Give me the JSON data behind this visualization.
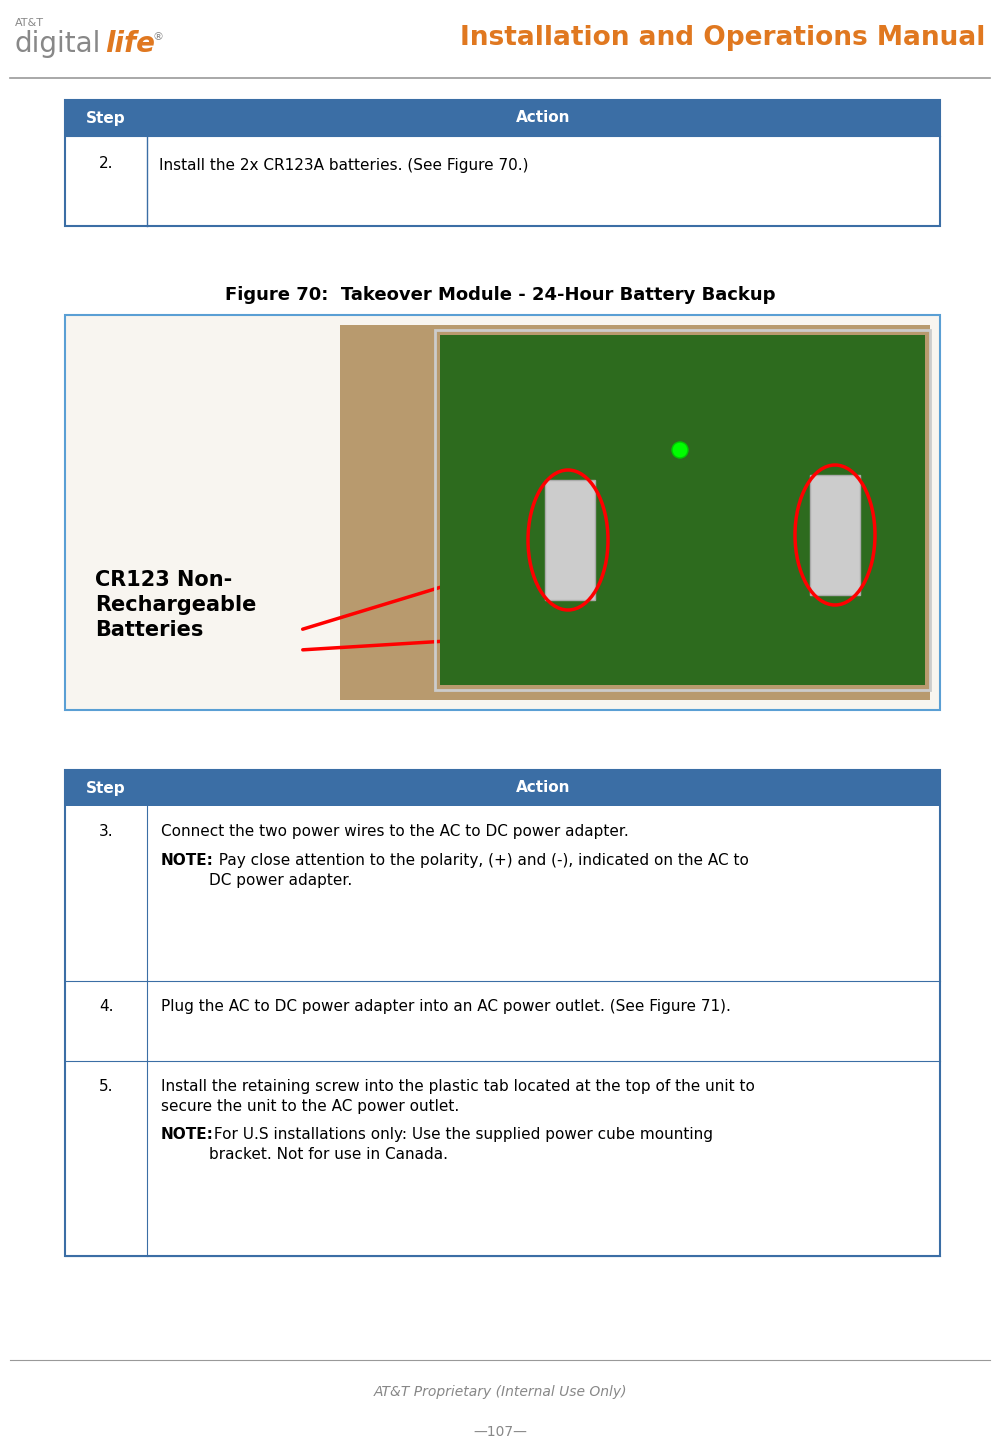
{
  "page_width": 10.0,
  "page_height": 14.43,
  "dpi": 100,
  "bg_color": "#ffffff",
  "header": {
    "title": "Installation and Operations Manual",
    "title_color": "#e07820",
    "title_fontsize": 19,
    "line_color": "#999999"
  },
  "footer": {
    "line_color": "#999999",
    "proprietary_text": "AT&T Proprietary (Internal Use Only)",
    "proprietary_color": "#888888",
    "page_number": "—107—",
    "page_number_color": "#888888"
  },
  "table1": {
    "header_color": "#3b6ea5",
    "header_text_color": "#ffffff",
    "col1_header": "Step",
    "col2_header": "Action",
    "row1_step": "2.",
    "row1_action": "Install the 2x CR123A batteries. (See Figure 70.)",
    "border_color": "#3b6ea5",
    "text_color": "#000000"
  },
  "figure_caption": {
    "text": "Figure 70:  Takeover Module - 24-Hour Battery Backup",
    "color": "#000000"
  },
  "figure_box": {
    "border_color": "#5a9fd4",
    "bg_color": "#f8f5f0",
    "label_text": "CR123 Non-\nRechargeable\nBatteries",
    "label_color": "#000000"
  },
  "table2": {
    "header_color": "#3b6ea5",
    "header_text_color": "#ffffff",
    "col1_header": "Step",
    "col2_header": "Action",
    "border_color": "#3b6ea5",
    "text_color": "#000000"
  }
}
